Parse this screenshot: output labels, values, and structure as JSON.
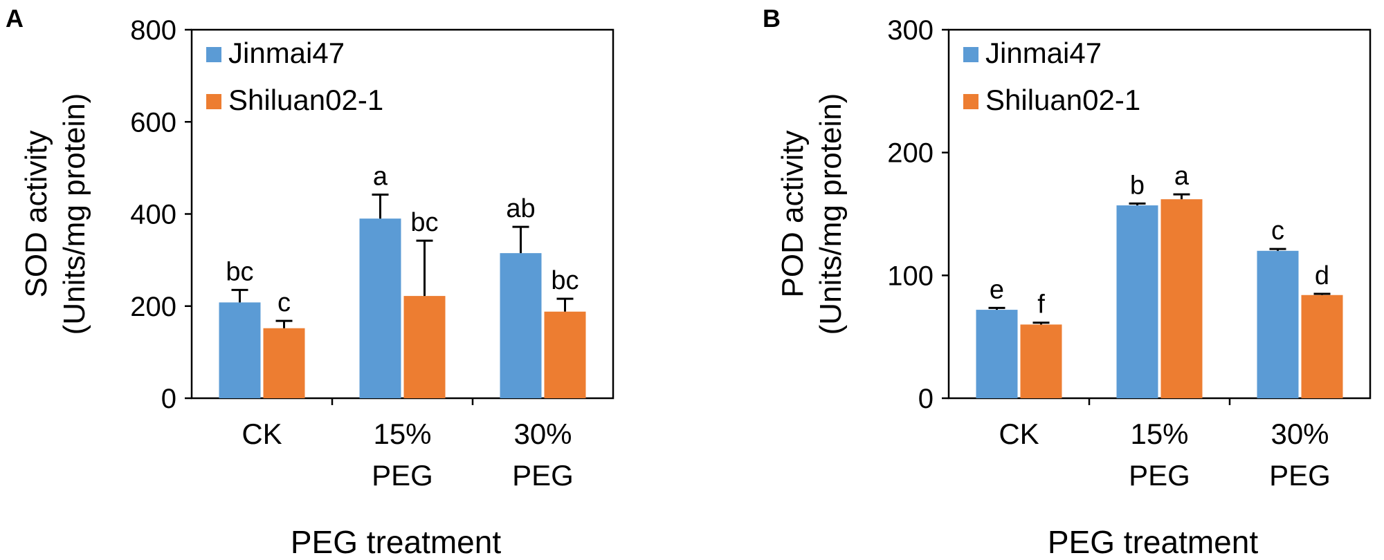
{
  "figure": {
    "panels": [
      "A",
      "B"
    ]
  },
  "colors": {
    "jinmai": "#5b9bd5",
    "shiluan": "#ed7d31",
    "axis": "#000000"
  },
  "chart_data": [
    {
      "type": "bar",
      "panel": "A",
      "categories": [
        [
          "CK"
        ],
        [
          "15%",
          "PEG"
        ],
        [
          "30%",
          "PEG"
        ]
      ],
      "series": [
        {
          "name": "Jinmai47",
          "values": [
            208,
            390,
            315
          ],
          "errors": [
            27,
            52,
            57
          ],
          "labels": [
            "bc",
            "a",
            "ab"
          ]
        },
        {
          "name": "Shiluan02-1",
          "values": [
            152,
            222,
            188
          ],
          "errors": [
            16,
            120,
            28
          ],
          "labels": [
            "c",
            "bc",
            "bc"
          ]
        }
      ],
      "xlabel": "PEG treatment",
      "ylabel": [
        "SOD activity",
        "(Units/mg protein)"
      ],
      "ylim": [
        0,
        800
      ],
      "yticks": [
        0,
        200,
        400,
        600,
        800
      ],
      "legend": "top-left",
      "grid": false
    },
    {
      "type": "bar",
      "panel": "B",
      "categories": [
        [
          "CK"
        ],
        [
          "15%",
          "PEG"
        ],
        [
          "30%",
          "PEG"
        ]
      ],
      "series": [
        {
          "name": "Jinmai47",
          "values": [
            72,
            157,
            120
          ],
          "errors": [
            1.5,
            1.5,
            1.5
          ],
          "labels": [
            "e",
            "b",
            "c"
          ]
        },
        {
          "name": "Shiluan02-1",
          "values": [
            60,
            162,
            84
          ],
          "errors": [
            1.5,
            4,
            1
          ],
          "labels": [
            "f",
            "a",
            "d"
          ]
        }
      ],
      "xlabel": "PEG treatment",
      "ylabel": [
        "POD activity",
        "(Units/mg protein)"
      ],
      "ylim": [
        0,
        300
      ],
      "yticks": [
        0,
        100,
        200,
        300
      ],
      "legend": "top-left",
      "grid": false
    }
  ]
}
